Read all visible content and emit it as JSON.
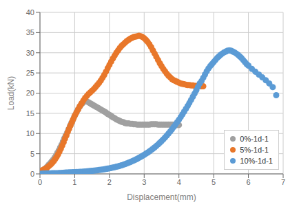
{
  "chart_data": {
    "type": "scatter",
    "xlabel": "Displacement(mm)",
    "ylabel": "Load(kN)",
    "xlim": [
      0,
      7
    ],
    "ylim": [
      0,
      40
    ],
    "xticks": [
      0,
      1,
      2,
      3,
      4,
      5,
      6,
      7
    ],
    "yticks": [
      0,
      5,
      10,
      15,
      20,
      25,
      30,
      35,
      40
    ],
    "grid": true,
    "legend": "lower right",
    "marker": "circle",
    "series": [
      {
        "name": "0%-1d-1",
        "color": "#A0A0A0",
        "x": [
          0.0,
          0.02,
          0.04,
          0.06,
          0.08,
          0.1,
          0.12,
          0.15,
          0.18,
          0.2,
          0.23,
          0.26,
          0.3,
          0.34,
          0.38,
          0.42,
          0.46,
          0.5,
          0.54,
          0.58,
          0.62,
          0.66,
          0.7,
          0.74,
          0.78,
          0.82,
          0.86,
          0.9,
          0.94,
          0.98,
          1.02,
          1.06,
          1.1,
          1.14,
          1.18,
          1.22,
          1.26,
          1.3,
          1.34,
          1.38,
          1.42,
          1.46,
          1.5,
          1.54,
          1.58,
          1.62,
          1.66,
          1.7,
          1.74,
          1.78,
          1.82,
          1.86,
          1.9,
          1.94,
          1.98,
          2.02,
          2.06,
          2.1,
          2.15,
          2.2,
          2.25,
          2.3,
          2.35,
          2.4,
          2.45,
          2.5,
          2.55,
          2.6,
          2.65,
          2.7,
          2.75,
          2.8,
          2.85,
          2.9,
          2.95,
          3.0,
          3.05,
          3.1,
          3.15,
          3.2,
          3.25,
          3.3,
          3.35,
          3.4,
          3.45,
          3.5,
          3.55,
          3.6,
          3.65,
          3.7,
          3.75,
          3.8,
          3.85,
          3.9,
          3.95,
          4.0
        ],
        "values": [
          0.5,
          0.6,
          0.7,
          0.8,
          0.9,
          1.0,
          1.1,
          1.3,
          1.5,
          1.7,
          2.0,
          2.3,
          2.7,
          3.1,
          3.5,
          4.0,
          4.5,
          5.2,
          5.8,
          6.5,
          7.2,
          8.0,
          8.8,
          9.5,
          10.2,
          11.0,
          11.8,
          12.5,
          13.2,
          14.0,
          14.7,
          15.4,
          16.0,
          16.6,
          17.1,
          17.5,
          17.8,
          18.0,
          18.0,
          17.8,
          17.6,
          17.4,
          17.2,
          17.0,
          16.8,
          16.6,
          16.4,
          16.2,
          16.0,
          15.8,
          15.6,
          15.4,
          15.2,
          14.9,
          14.7,
          14.5,
          14.3,
          14.0,
          13.8,
          13.5,
          13.3,
          13.1,
          12.9,
          12.8,
          12.6,
          12.5,
          12.5,
          12.4,
          12.4,
          12.3,
          12.3,
          12.2,
          12.2,
          12.2,
          12.2,
          12.2,
          12.2,
          12.2,
          12.2,
          12.3,
          12.3,
          12.3,
          12.3,
          12.2,
          12.2,
          12.2,
          12.2,
          12.2,
          12.2,
          12.2,
          12.2,
          12.2,
          12.2,
          12.1,
          12.1,
          12.1
        ]
      },
      {
        "name": "5%-1d-1",
        "color": "#E8772A",
        "x": [
          0.0,
          0.02,
          0.04,
          0.06,
          0.08,
          0.1,
          0.13,
          0.16,
          0.2,
          0.24,
          0.28,
          0.32,
          0.36,
          0.4,
          0.44,
          0.48,
          0.52,
          0.56,
          0.6,
          0.64,
          0.68,
          0.72,
          0.76,
          0.8,
          0.84,
          0.88,
          0.92,
          0.96,
          1.0,
          1.05,
          1.1,
          1.15,
          1.2,
          1.25,
          1.3,
          1.35,
          1.4,
          1.45,
          1.5,
          1.55,
          1.6,
          1.65,
          1.7,
          1.75,
          1.8,
          1.85,
          1.9,
          1.95,
          2.0,
          2.05,
          2.1,
          2.15,
          2.2,
          2.25,
          2.3,
          2.35,
          2.4,
          2.45,
          2.5,
          2.55,
          2.6,
          2.65,
          2.7,
          2.75,
          2.8,
          2.85,
          2.9,
          2.95,
          3.0,
          3.05,
          3.1,
          3.15,
          3.2,
          3.25,
          3.3,
          3.35,
          3.4,
          3.45,
          3.5,
          3.55,
          3.6,
          3.65,
          3.7,
          3.75,
          3.8,
          3.85,
          3.9,
          3.95,
          4.0,
          4.05,
          4.1,
          4.15,
          4.2,
          4.25,
          4.3,
          4.35,
          4.4,
          4.45,
          4.5,
          4.55,
          4.6,
          4.65,
          4.7
        ],
        "values": [
          0.5,
          0.6,
          0.7,
          0.8,
          0.9,
          1.0,
          1.1,
          1.3,
          1.5,
          1.8,
          2.1,
          2.4,
          2.8,
          3.2,
          3.7,
          4.2,
          4.8,
          5.5,
          6.2,
          7.0,
          7.8,
          8.7,
          9.5,
          10.4,
          11.2,
          12.0,
          12.8,
          13.6,
          14.4,
          15.2,
          16.0,
          16.8,
          17.5,
          18.2,
          18.8,
          19.3,
          19.8,
          20.2,
          20.6,
          21.0,
          21.5,
          22.0,
          22.5,
          23.1,
          23.8,
          24.5,
          25.3,
          26.2,
          27.0,
          27.8,
          28.6,
          29.3,
          30.0,
          30.6,
          31.2,
          31.7,
          32.1,
          32.5,
          32.9,
          33.2,
          33.5,
          33.7,
          33.9,
          34.0,
          34.1,
          34.2,
          34.1,
          33.9,
          33.6,
          33.2,
          32.7,
          32.1,
          31.4,
          30.6,
          29.8,
          29.0,
          28.2,
          27.4,
          26.7,
          26.0,
          25.4,
          24.8,
          24.3,
          23.9,
          23.5,
          23.2,
          23.0,
          22.8,
          22.6,
          22.4,
          22.3,
          22.2,
          22.1,
          22.0,
          22.0,
          21.9,
          21.9,
          21.8,
          21.8,
          21.7,
          21.7,
          21.7,
          21.7
        ]
      },
      {
        "name": "10%-1d-1",
        "color": "#5B9BD5",
        "x": [
          0.0,
          0.05,
          0.1,
          0.15,
          0.2,
          0.25,
          0.3,
          0.35,
          0.4,
          0.45,
          0.5,
          0.55,
          0.6,
          0.65,
          0.7,
          0.75,
          0.8,
          0.85,
          0.9,
          0.95,
          1.0,
          1.05,
          1.1,
          1.15,
          1.2,
          1.25,
          1.3,
          1.35,
          1.4,
          1.45,
          1.5,
          1.55,
          1.6,
          1.65,
          1.7,
          1.75,
          1.8,
          1.85,
          1.9,
          1.95,
          2.0,
          2.05,
          2.1,
          2.15,
          2.2,
          2.25,
          2.3,
          2.35,
          2.4,
          2.45,
          2.5,
          2.55,
          2.6,
          2.65,
          2.7,
          2.75,
          2.8,
          2.85,
          2.9,
          2.95,
          3.0,
          3.05,
          3.1,
          3.15,
          3.2,
          3.25,
          3.3,
          3.35,
          3.4,
          3.45,
          3.5,
          3.55,
          3.6,
          3.65,
          3.7,
          3.75,
          3.8,
          3.85,
          3.9,
          3.95,
          4.0,
          4.05,
          4.1,
          4.15,
          4.2,
          4.25,
          4.3,
          4.35,
          4.4,
          4.45,
          4.5,
          4.55,
          4.6,
          4.65,
          4.7,
          4.75,
          4.8,
          4.85,
          4.9,
          4.95,
          5.0,
          5.05,
          5.1,
          5.15,
          5.2,
          5.25,
          5.3,
          5.35,
          5.4,
          5.45,
          5.5,
          5.55,
          5.6,
          5.65,
          5.7,
          5.75,
          5.8,
          5.85,
          5.9,
          5.95,
          6.0,
          6.1,
          6.2,
          6.3,
          6.4,
          6.5,
          6.6,
          6.7,
          6.8
        ],
        "values": [
          0.0,
          0.05,
          0.08,
          0.1,
          0.12,
          0.13,
          0.14,
          0.15,
          0.16,
          0.17,
          0.18,
          0.2,
          0.22,
          0.25,
          0.28,
          0.32,
          0.35,
          0.38,
          0.4,
          0.42,
          0.44,
          0.46,
          0.48,
          0.5,
          0.52,
          0.55,
          0.58,
          0.62,
          0.66,
          0.7,
          0.75,
          0.8,
          0.85,
          0.9,
          0.96,
          1.02,
          1.08,
          1.15,
          1.22,
          1.3,
          1.38,
          1.47,
          1.56,
          1.66,
          1.77,
          1.88,
          2.0,
          2.13,
          2.27,
          2.42,
          2.58,
          2.75,
          2.93,
          3.12,
          3.32,
          3.53,
          3.75,
          3.98,
          4.22,
          4.47,
          4.73,
          5.0,
          5.28,
          5.58,
          5.89,
          6.22,
          6.56,
          6.92,
          7.3,
          7.7,
          8.12,
          8.56,
          9.02,
          9.5,
          10.0,
          10.52,
          11.06,
          11.62,
          12.2,
          12.8,
          13.42,
          14.06,
          14.72,
          15.4,
          16.1,
          16.82,
          17.56,
          18.32,
          19.1,
          19.9,
          20.72,
          21.56,
          22.42,
          23.0,
          23.8,
          24.6,
          25.4,
          26.1,
          26.7,
          27.2,
          27.7,
          28.2,
          28.7,
          29.1,
          29.5,
          29.8,
          30.1,
          30.3,
          30.5,
          30.6,
          30.5,
          30.3,
          30.1,
          29.8,
          29.5,
          29.1,
          28.7,
          28.2,
          27.7,
          27.2,
          26.8,
          26.0,
          25.3,
          24.6,
          23.9,
          23.2,
          22.4,
          21.5,
          19.5
        ]
      }
    ]
  }
}
